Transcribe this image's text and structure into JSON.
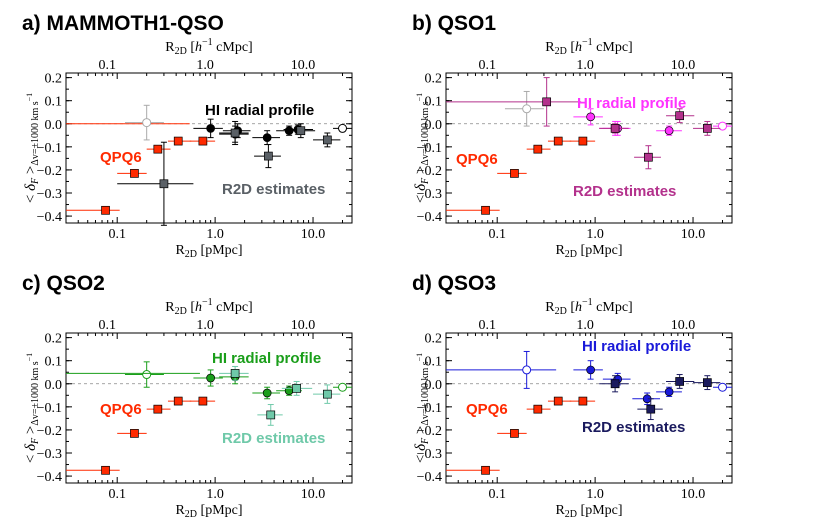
{
  "chart_data": [
    {
      "type": "scatter",
      "title": "a) MAMMOTH1-QSO",
      "xlabel_bottom": "R2D [pMpc]",
      "xlabel_top": "R2D [h^-1 cMpc]",
      "ylabel": "< δF >Δv=±1000 km s^-1",
      "xscale": "log",
      "xlim": [
        0.03,
        25
      ],
      "top_xlim": [
        0.03,
        25
      ],
      "ylim": [
        -0.43,
        0.22
      ],
      "yticks": [
        -0.4,
        -0.3,
        -0.2,
        -0.1,
        0.0,
        0.1,
        0.2
      ],
      "ytick_labels": [
        "−0.4",
        "−0.3",
        "−0.2",
        "−0.1",
        "0.0",
        "0.1",
        "0.2"
      ],
      "xticks": [
        0.1,
        1.0,
        10.0
      ],
      "xtick_labels": [
        "0.1",
        "1.0",
        "10.0"
      ],
      "top_xticks": [
        0.1,
        1.0,
        10.0
      ],
      "top_xtick_labels": [
        "0.1",
        "1.0",
        "10.0"
      ],
      "annotations": [
        {
          "text": "HI radial profile",
          "color": "#000000"
        },
        {
          "text": "QPQ6",
          "color": "#ff2a00"
        },
        {
          "text": "R2D estimates",
          "color": "#5a6066"
        }
      ],
      "series": [
        {
          "name": "QPQ6",
          "color": "#ff2a00",
          "marker": "square",
          "x": [
            0.076,
            0.15,
            0.26,
            0.42,
            0.75
          ],
          "xerr_lo": [
            0.046,
            0.05,
            0.06,
            0.09,
            0.2
          ],
          "xerr_hi": [
            0.03,
            0.05,
            0.09,
            0.15,
            0.25
          ],
          "y": [
            -0.375,
            -0.215,
            -0.11,
            -0.075,
            -0.075
          ],
          "yerr": [
            0.015,
            0.008,
            0.006,
            0.005,
            0.005
          ]
        },
        {
          "name": "QPQ6 outer",
          "color": "#ff2a00",
          "marker": "none",
          "x": [
            0.55
          ],
          "xerr_lo": [
            0.52
          ],
          "xerr_hi": [
            0.0
          ],
          "y": [
            0.0
          ],
          "yerr": [
            0.0
          ]
        },
        {
          "name": "HI radial profile",
          "color": "#000000",
          "marker": "circle",
          "x": [
            0.2,
            0.9,
            1.6,
            1.7,
            3.4,
            5.7,
            7.0,
            20.0
          ],
          "xerr_lo": [
            0.08,
            0.3,
            0.5,
            0.5,
            1.0,
            1.5,
            2.0,
            4.0
          ],
          "xerr_hi": [
            0.1,
            0.3,
            0.6,
            0.6,
            1.2,
            2.0,
            3.0,
            5.0
          ],
          "y": [
            0.005,
            -0.02,
            -0.045,
            -0.03,
            -0.06,
            -0.03,
            -0.025,
            -0.02
          ],
          "yerr": [
            0.075,
            0.04,
            0.035,
            0.03,
            0.03,
            0.02,
            0.02,
            0.008
          ],
          "hollow_index": [
            0,
            7
          ],
          "light_index": [
            0
          ]
        },
        {
          "name": "R2D estimates",
          "color": "#5a6066",
          "marker": "square",
          "x": [
            0.3,
            1.6,
            3.5,
            7.5,
            14.0
          ],
          "xerr_lo": [
            0.2,
            0.5,
            1.0,
            2.0,
            4.0
          ],
          "xerr_hi": [
            0.3,
            0.6,
            1.2,
            3.0,
            5.0
          ],
          "y": [
            -0.26,
            -0.04,
            -0.14,
            -0.03,
            -0.07
          ],
          "yerr": [
            0.18,
            0.05,
            0.05,
            0.03,
            0.03
          ]
        }
      ]
    },
    {
      "type": "scatter",
      "title": "b) QSO1",
      "xlabel_bottom": "R2D [pMpc]",
      "xlabel_top": "R2D [h^-1 cMpc]",
      "ylabel": "< δF >Δv=±1000 km s^-1",
      "xscale": "log",
      "xlim": [
        0.03,
        25
      ],
      "top_xlim": [
        0.03,
        25
      ],
      "ylim": [
        -0.43,
        0.22
      ],
      "yticks": [
        -0.4,
        -0.3,
        -0.2,
        -0.1,
        0.0,
        0.1,
        0.2
      ],
      "ytick_labels": [
        "−0.4",
        "−0.3",
        "−0.2",
        "−0.1",
        "0.0",
        "0.1",
        "0.2"
      ],
      "xticks": [
        0.1,
        1.0,
        10.0
      ],
      "xtick_labels": [
        "0.1",
        "1.0",
        "10.0"
      ],
      "top_xticks": [
        0.1,
        1.0,
        10.0
      ],
      "top_xtick_labels": [
        "0.1",
        "1.0",
        "10.0"
      ],
      "annotations": [
        {
          "text": "HI radial profile",
          "color": "#ff33ff"
        },
        {
          "text": "QPQ6",
          "color": "#ff2a00"
        },
        {
          "text": "R2D estimates",
          "color": "#b3318c"
        }
      ],
      "series": [
        {
          "name": "QPQ6",
          "color": "#ff2a00",
          "marker": "square",
          "x": [
            0.076,
            0.15,
            0.26,
            0.42,
            0.75
          ],
          "xerr_lo": [
            0.046,
            0.05,
            0.06,
            0.09,
            0.2
          ],
          "xerr_hi": [
            0.03,
            0.05,
            0.09,
            0.15,
            0.25
          ],
          "y": [
            -0.375,
            -0.215,
            -0.11,
            -0.075,
            -0.075
          ],
          "yerr": [
            0.015,
            0.008,
            0.006,
            0.005,
            0.005
          ]
        },
        {
          "name": "HI radial profile",
          "color": "#ff33ff",
          "marker": "circle",
          "x": [
            0.2,
            0.9,
            1.6,
            1.7,
            5.7,
            20.0
          ],
          "xerr_lo": [
            0.08,
            0.3,
            0.5,
            0.5,
            1.5,
            4.0
          ],
          "xerr_hi": [
            0.1,
            0.3,
            0.6,
            0.6,
            2.0,
            5.0
          ],
          "y": [
            0.065,
            0.03,
            -0.02,
            -0.02,
            -0.03,
            -0.01
          ],
          "yerr": [
            0.075,
            0.035,
            0.03,
            0.03,
            0.02,
            0.008
          ],
          "hollow_index": [
            0,
            5
          ],
          "light_index": [
            0
          ]
        },
        {
          "name": "R2D estimates",
          "color": "#b3318c",
          "marker": "square",
          "x": [
            0.32,
            1.6,
            3.5,
            7.3,
            14.0
          ],
          "xerr_lo": [
            0.3,
            0.5,
            1.0,
            2.0,
            4.0
          ],
          "xerr_hi": [
            0.4,
            0.6,
            1.2,
            3.0,
            5.0
          ],
          "y": [
            0.095,
            -0.02,
            -0.145,
            0.035,
            -0.02
          ],
          "yerr": [
            0.105,
            0.02,
            0.05,
            0.03,
            0.03
          ]
        }
      ]
    },
    {
      "type": "scatter",
      "title": "c) QSO2",
      "xlabel_bottom": "R2D [pMpc]",
      "xlabel_top": "R2D [h^-1 cMpc]",
      "ylabel": "< δF >Δv=±1000 km s^-1",
      "xscale": "log",
      "xlim": [
        0.03,
        25
      ],
      "top_xlim": [
        0.03,
        25
      ],
      "ylim": [
        -0.43,
        0.22
      ],
      "yticks": [
        -0.4,
        -0.3,
        -0.2,
        -0.1,
        0.0,
        0.1,
        0.2
      ],
      "ytick_labels": [
        "−0.4",
        "−0.3",
        "−0.2",
        "−0.1",
        "0.0",
        "0.1",
        "0.2"
      ],
      "xticks": [
        0.1,
        1.0,
        10.0
      ],
      "xtick_labels": [
        "0.1",
        "1.0",
        "10.0"
      ],
      "top_xticks": [
        0.1,
        1.0,
        10.0
      ],
      "top_xtick_labels": [
        "0.1",
        "1.0",
        "10.0"
      ],
      "annotations": [
        {
          "text": "HI radial profile",
          "color": "#1a9e1a"
        },
        {
          "text": "QPQ6",
          "color": "#ff2a00"
        },
        {
          "text": "R2D estimates",
          "color": "#6fc9a9"
        }
      ],
      "series": [
        {
          "name": "QPQ6",
          "color": "#ff2a00",
          "marker": "square",
          "x": [
            0.076,
            0.15,
            0.26,
            0.42,
            0.75
          ],
          "xerr_lo": [
            0.046,
            0.05,
            0.06,
            0.09,
            0.2
          ],
          "xerr_hi": [
            0.03,
            0.05,
            0.09,
            0.15,
            0.25
          ],
          "y": [
            -0.375,
            -0.215,
            -0.11,
            -0.075,
            -0.075
          ],
          "yerr": [
            0.015,
            0.008,
            0.006,
            0.005,
            0.005
          ]
        },
        {
          "name": "HI radial profile",
          "color": "#1a9e1a",
          "marker": "circle",
          "x": [
            0.2,
            0.9,
            1.6,
            3.4,
            5.7,
            20.0
          ],
          "xerr_lo": [
            0.08,
            0.3,
            0.5,
            1.0,
            1.5,
            4.0
          ],
          "xerr_hi": [
            0.1,
            0.3,
            0.6,
            1.2,
            2.0,
            5.0
          ],
          "y": [
            0.04,
            0.025,
            0.03,
            -0.04,
            -0.03,
            -0.015
          ],
          "yerr": [
            0.055,
            0.035,
            0.03,
            0.025,
            0.02,
            0.008
          ],
          "hollow_index": [
            0,
            5
          ],
          "light_index": []
        },
        {
          "name": "R2D estimates",
          "color": "#6fc9a9",
          "marker": "square",
          "x": [
            1.6,
            3.7,
            6.8,
            14.0
          ],
          "xerr_lo": [
            0.5,
            1.0,
            2.0,
            4.0
          ],
          "xerr_hi": [
            0.6,
            1.2,
            3.0,
            5.0
          ],
          "y": [
            0.045,
            -0.135,
            -0.02,
            -0.045
          ],
          "yerr": [
            0.03,
            0.045,
            0.03,
            0.04
          ]
        },
        {
          "name": "HI outer",
          "color": "#1a9e1a",
          "marker": "none",
          "x": [
            0.2
          ],
          "xerr_lo": [
            0.17
          ],
          "xerr_hi": [
            0.5
          ],
          "y": [
            0.045
          ],
          "yerr": [
            0.0
          ]
        }
      ]
    },
    {
      "type": "scatter",
      "title": "d) QSO3",
      "xlabel_bottom": "R2D [pMpc]",
      "xlabel_top": "R2D [h^-1 cMpc]",
      "ylabel": "< δF >Δv=±1000 km s^-1",
      "xscale": "log",
      "xlim": [
        0.03,
        25
      ],
      "top_xlim": [
        0.03,
        25
      ],
      "ylim": [
        -0.43,
        0.22
      ],
      "yticks": [
        -0.4,
        -0.3,
        -0.2,
        -0.1,
        0.0,
        0.1,
        0.2
      ],
      "ytick_labels": [
        "−0.4",
        "−0.3",
        "−0.2",
        "−0.1",
        "0.0",
        "0.1",
        "0.2"
      ],
      "xticks": [
        0.1,
        1.0,
        10.0
      ],
      "xtick_labels": [
        "0.1",
        "1.0",
        "10.0"
      ],
      "top_xticks": [
        0.1,
        1.0,
        10.0
      ],
      "top_xtick_labels": [
        "0.1",
        "1.0",
        "10.0"
      ],
      "annotations": [
        {
          "text": "HI radial profile",
          "color": "#1a1ad9"
        },
        {
          "text": "QPQ6",
          "color": "#ff2a00"
        },
        {
          "text": "R2D estimates",
          "color": "#1a1a5e"
        }
      ],
      "series": [
        {
          "name": "QPQ6",
          "color": "#ff2a00",
          "marker": "square",
          "x": [
            0.076,
            0.15,
            0.26,
            0.42,
            0.75
          ],
          "xerr_lo": [
            0.046,
            0.05,
            0.06,
            0.09,
            0.2
          ],
          "xerr_hi": [
            0.03,
            0.05,
            0.09,
            0.15,
            0.25
          ],
          "y": [
            -0.375,
            -0.215,
            -0.11,
            -0.075,
            -0.075
          ],
          "yerr": [
            0.015,
            0.008,
            0.006,
            0.005,
            0.005
          ]
        },
        {
          "name": "HI radial profile",
          "color": "#1a1ad9",
          "marker": "circle",
          "x": [
            0.2,
            0.9,
            1.7,
            3.4,
            5.7,
            20.0
          ],
          "xerr_lo": [
            0.17,
            0.3,
            0.5,
            1.0,
            1.5,
            4.0
          ],
          "xerr_hi": [
            0.2,
            0.3,
            0.6,
            1.2,
            2.0,
            5.0
          ],
          "y": [
            0.06,
            0.06,
            0.02,
            -0.065,
            -0.035,
            -0.015
          ],
          "yerr": [
            0.08,
            0.04,
            0.025,
            0.025,
            0.02,
            0.008
          ],
          "hollow_index": [
            0,
            5
          ],
          "light_index": []
        },
        {
          "name": "R2D estimates",
          "color": "#1a1a5e",
          "marker": "square",
          "x": [
            1.6,
            3.7,
            7.3,
            14.0
          ],
          "xerr_lo": [
            0.5,
            1.0,
            2.0,
            4.0
          ],
          "xerr_hi": [
            0.6,
            1.2,
            3.0,
            5.0
          ],
          "y": [
            0.0,
            -0.11,
            0.01,
            0.005
          ],
          "yerr": [
            0.035,
            0.045,
            0.03,
            0.03
          ]
        }
      ]
    }
  ]
}
